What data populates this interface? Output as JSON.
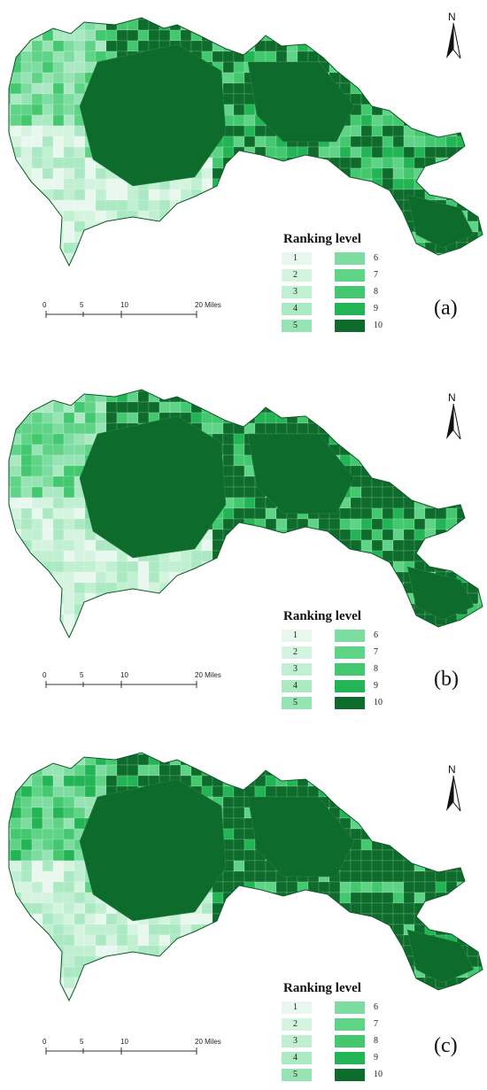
{
  "panels": [
    {
      "label": "(a)",
      "legend_title": "Ranking level",
      "north_letter": "N",
      "scale_ticks": [
        "0",
        "5",
        "10",
        "20 Miles"
      ]
    },
    {
      "label": "(b)",
      "legend_title": "Ranking level",
      "north_letter": "N",
      "scale_ticks": [
        "0",
        "5",
        "10",
        "20 Miles"
      ]
    },
    {
      "label": "(c)",
      "legend_title": "Ranking level",
      "north_letter": "N",
      "scale_ticks": [
        "0",
        "5",
        "10",
        "20 Miles"
      ]
    }
  ],
  "legend_levels": [
    {
      "label": "1",
      "color": "#e8f8ef"
    },
    {
      "label": "2",
      "color": "#d4f4e0"
    },
    {
      "label": "3",
      "color": "#c0efd2"
    },
    {
      "label": "4",
      "color": "#abe9c3"
    },
    {
      "label": "5",
      "color": "#96e3b3"
    },
    {
      "label": "6",
      "color": "#7ddda0"
    },
    {
      "label": "7",
      "color": "#5fd386"
    },
    {
      "label": "8",
      "color": "#43c86f"
    },
    {
      "label": "9",
      "color": "#22b455"
    },
    {
      "label": "10",
      "color": "#0d6b2b"
    }
  ]
}
